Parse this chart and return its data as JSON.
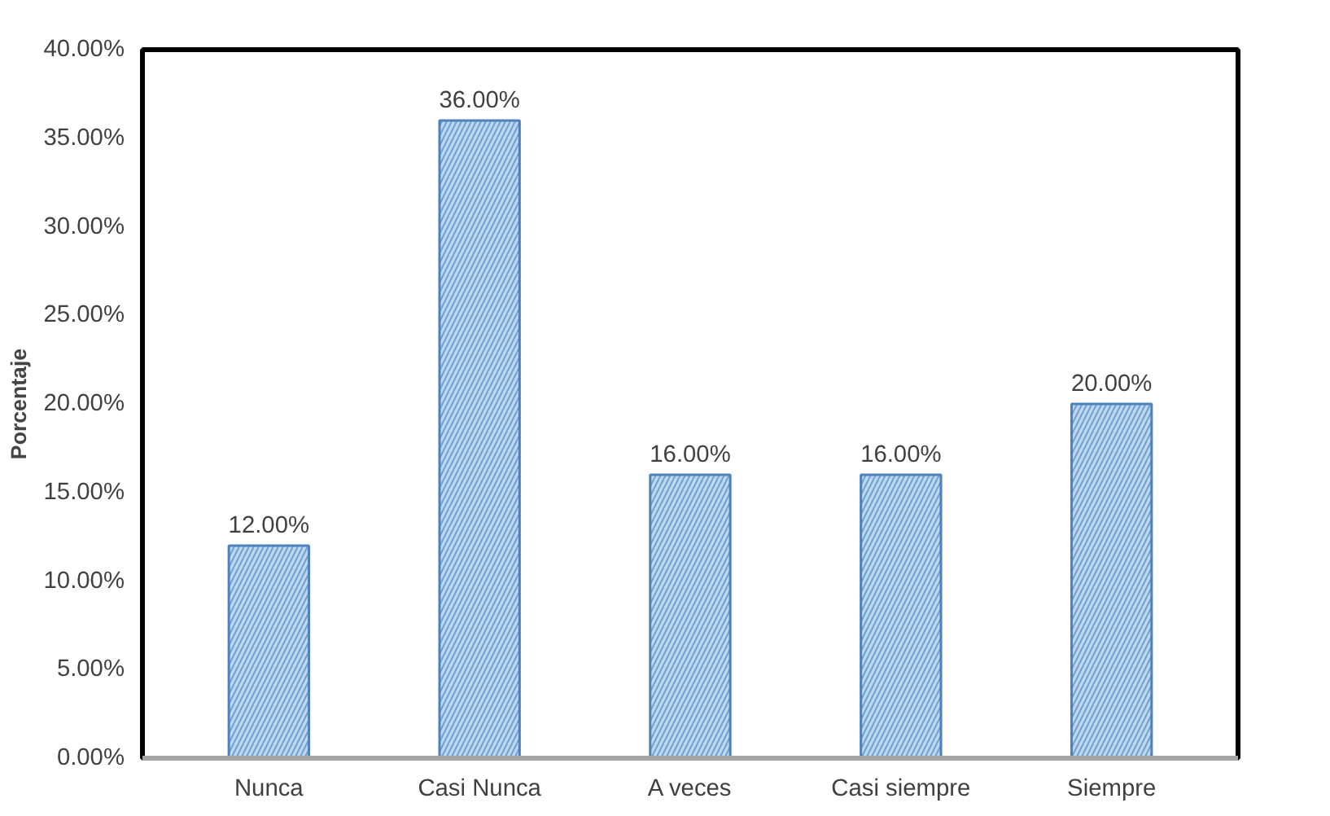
{
  "chart_data": {
    "type": "bar",
    "categories": [
      "Nunca",
      "Casi Nunca",
      "A veces",
      "Casi siempre",
      "Siempre"
    ],
    "values": [
      12,
      36,
      16,
      16,
      20
    ],
    "value_labels": [
      "12.00%",
      "36.00%",
      "16.00%",
      "16.00%",
      "20.00%"
    ],
    "color": "#bdd7ee",
    "ylabel": "Porcentaje",
    "ylim": [
      0,
      40
    ],
    "yticks": [
      {
        "value": 0,
        "label": "0.00%"
      },
      {
        "value": 5,
        "label": "5.00%"
      },
      {
        "value": 10,
        "label": "10.00%"
      },
      {
        "value": 15,
        "label": "15.00%"
      },
      {
        "value": 20,
        "label": "20.00%"
      },
      {
        "value": 25,
        "label": "25.00%"
      },
      {
        "value": 30,
        "label": "30.00%"
      },
      {
        "value": 35,
        "label": "35.00%"
      },
      {
        "value": 40,
        "label": "40.00%"
      }
    ],
    "grid": false
  }
}
